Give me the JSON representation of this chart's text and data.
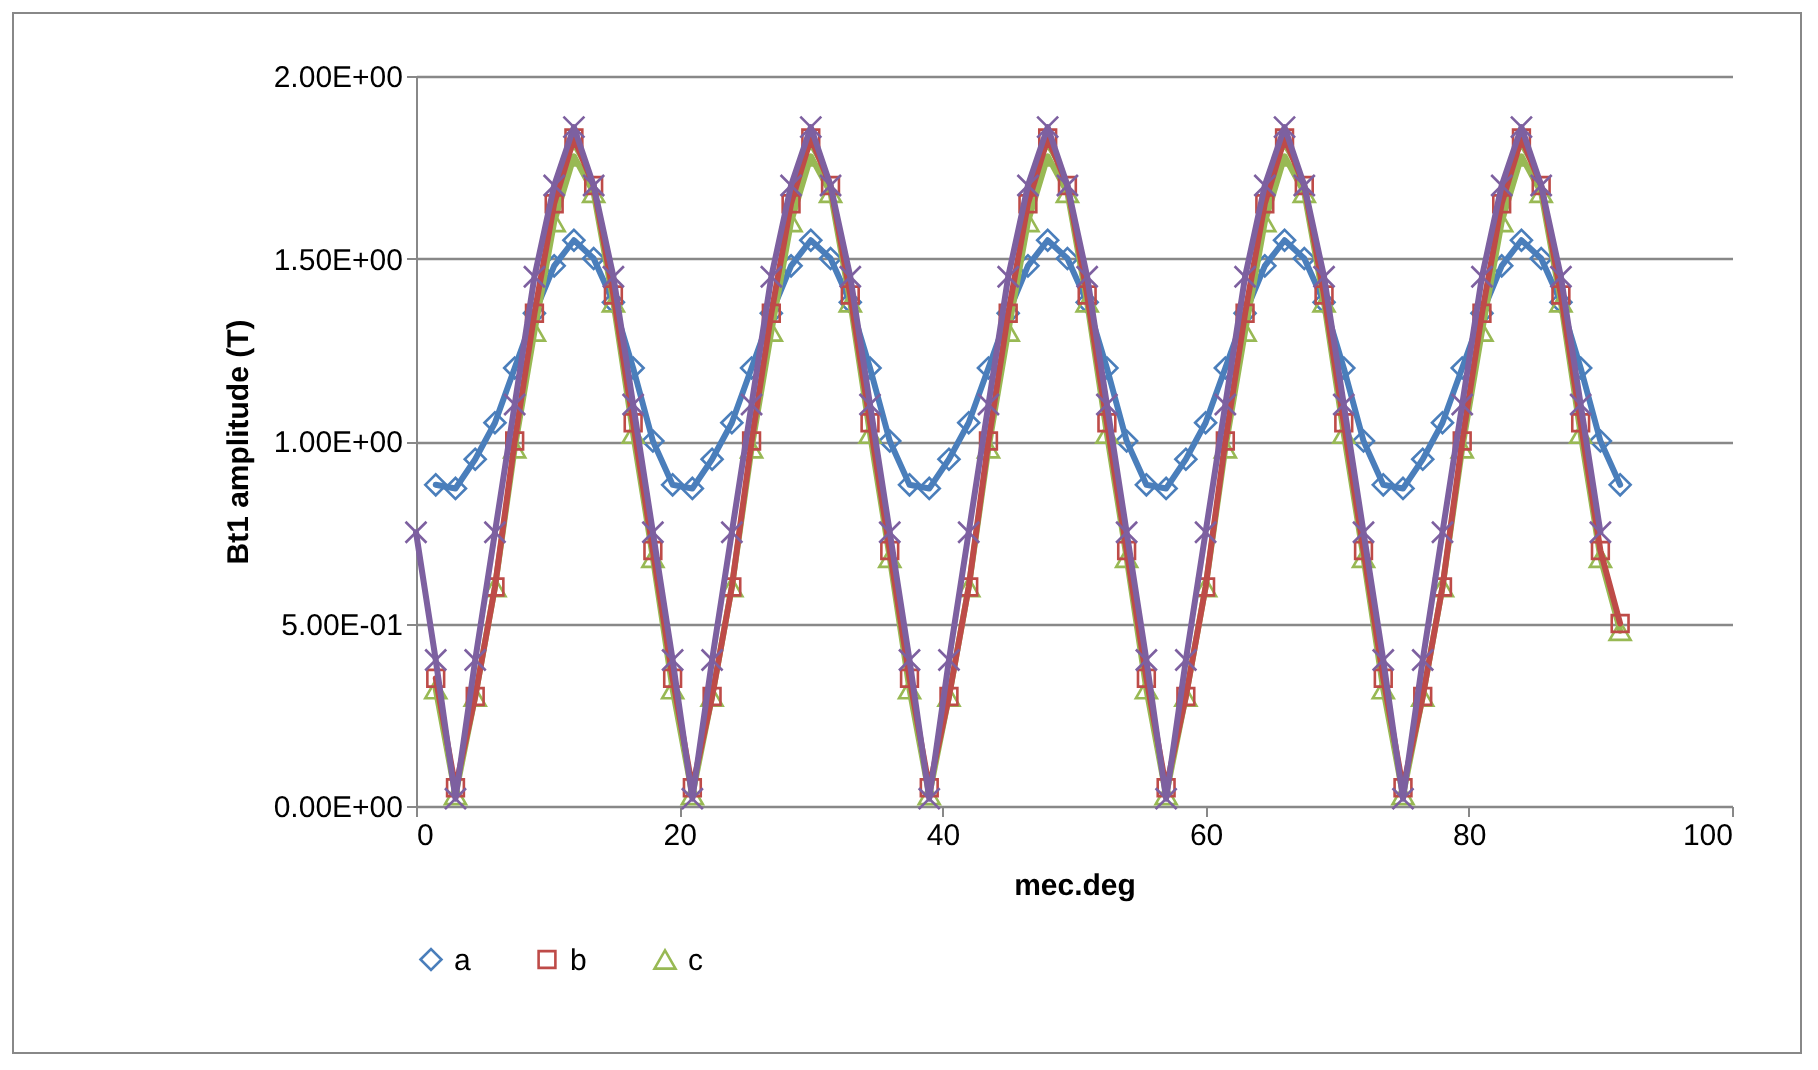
{
  "chart_data": {
    "type": "line",
    "xlabel": "mec.deg",
    "ylabel": "Bt1 amplitude (T)",
    "x": [
      1.5,
      3,
      4.5,
      6,
      7.5,
      9,
      10.5,
      12,
      13.5,
      15,
      16.5,
      18,
      19.5,
      21,
      22.5,
      24,
      25.5,
      27,
      28.5,
      30,
      31.5,
      33,
      34.5,
      36,
      37.5,
      39,
      40.5,
      42,
      43.5,
      45,
      46.5,
      48,
      49.5,
      51,
      52.5,
      54,
      55.5,
      57,
      58.5,
      60,
      61.5,
      63,
      64.5,
      66,
      67.5,
      69,
      70.5,
      72,
      73.5,
      75,
      76.5,
      78,
      79.5,
      81,
      82.5,
      84,
      85.5,
      87,
      88.5,
      90,
      91.5
    ],
    "series": [
      {
        "name": "a",
        "color": "#4a7ebb",
        "marker": "diamond",
        "values": [
          0.88,
          0.87,
          0.95,
          1.05,
          1.2,
          1.35,
          1.48,
          1.55,
          1.5,
          1.38,
          1.2,
          1.0,
          0.88,
          0.87,
          0.95,
          1.05,
          1.2,
          1.35,
          1.48,
          1.55,
          1.5,
          1.38,
          1.2,
          1.0,
          0.88,
          0.87,
          0.95,
          1.05,
          1.2,
          1.35,
          1.48,
          1.55,
          1.5,
          1.38,
          1.2,
          1.0,
          0.88,
          0.87,
          0.95,
          1.05,
          1.2,
          1.35,
          1.48,
          1.55,
          1.5,
          1.38,
          1.2,
          1.0,
          0.88,
          0.87,
          0.95,
          1.05,
          1.2,
          1.35,
          1.48,
          1.55,
          1.5,
          1.38,
          1.2,
          1.0,
          0.88
        ]
      },
      {
        "name": "b",
        "color": "#be4b48",
        "marker": "square",
        "values": [
          0.35,
          0.05,
          0.3,
          0.6,
          1.0,
          1.35,
          1.65,
          1.83,
          1.7,
          1.4,
          1.05,
          0.7,
          0.35,
          0.05,
          0.3,
          0.6,
          1.0,
          1.35,
          1.65,
          1.83,
          1.7,
          1.4,
          1.05,
          0.7,
          0.35,
          0.05,
          0.3,
          0.6,
          1.0,
          1.35,
          1.65,
          1.83,
          1.7,
          1.4,
          1.05,
          0.7,
          0.35,
          0.05,
          0.3,
          0.6,
          1.0,
          1.35,
          1.65,
          1.83,
          1.7,
          1.4,
          1.05,
          0.7,
          0.35,
          0.05,
          0.3,
          0.6,
          1.0,
          1.35,
          1.65,
          1.83,
          1.7,
          1.4,
          1.05,
          0.7,
          0.5
        ]
      },
      {
        "name": "c",
        "color": "#98b954",
        "marker": "triangle",
        "values": [
          0.32,
          0.03,
          0.3,
          0.6,
          0.98,
          1.3,
          1.6,
          1.78,
          1.68,
          1.38,
          1.02,
          0.68,
          0.32,
          0.03,
          0.3,
          0.6,
          0.98,
          1.3,
          1.6,
          1.78,
          1.68,
          1.38,
          1.02,
          0.68,
          0.32,
          0.03,
          0.3,
          0.6,
          0.98,
          1.3,
          1.6,
          1.78,
          1.68,
          1.38,
          1.02,
          0.68,
          0.32,
          0.03,
          0.3,
          0.6,
          0.98,
          1.3,
          1.6,
          1.78,
          1.68,
          1.38,
          1.02,
          0.68,
          0.32,
          0.03,
          0.3,
          0.6,
          0.98,
          1.3,
          1.6,
          1.78,
          1.68,
          1.38,
          1.02,
          0.68,
          0.48
        ]
      },
      {
        "color": "#7d60a0",
        "marker": "cross",
        "x": [
          0,
          1.5,
          3,
          4.5,
          6,
          7.5,
          9,
          10.5,
          12,
          13.5,
          15,
          16.5,
          18,
          19.5,
          21,
          22.5,
          24,
          25.5,
          27,
          28.5,
          30,
          31.5,
          33,
          34.5,
          36,
          37.5,
          39,
          40.5,
          42,
          43.5,
          45,
          46.5,
          48,
          49.5,
          51,
          52.5,
          54,
          55.5,
          57,
          58.5,
          60,
          61.5,
          63,
          64.5,
          66,
          67.5,
          69,
          70.5,
          72,
          73.5,
          75,
          76.5,
          78,
          79.5,
          81,
          82.5,
          84,
          85.5,
          87,
          88.5,
          90
        ],
        "values": [
          0.75,
          0.4,
          0.02,
          0.4,
          0.75,
          1.1,
          1.45,
          1.7,
          1.86,
          1.7,
          1.45,
          1.1,
          0.75,
          0.4,
          0.02,
          0.4,
          0.75,
          1.1,
          1.45,
          1.7,
          1.86,
          1.7,
          1.45,
          1.1,
          0.75,
          0.4,
          0.02,
          0.4,
          0.75,
          1.1,
          1.45,
          1.7,
          1.86,
          1.7,
          1.45,
          1.1,
          0.75,
          0.4,
          0.02,
          0.4,
          0.75,
          1.1,
          1.45,
          1.7,
          1.86,
          1.7,
          1.45,
          1.1,
          0.75,
          0.4,
          0.02,
          0.4,
          0.75,
          1.1,
          1.45,
          1.7,
          1.86,
          1.7,
          1.45,
          1.1,
          0.75
        ]
      }
    ],
    "xlim": [
      0,
      100
    ],
    "xticks": [
      0,
      20,
      40,
      60,
      80,
      100
    ],
    "ylim": [
      0,
      2
    ],
    "yticks": [
      {
        "value": 0,
        "label": "0.00E+00"
      },
      {
        "value": 0.5,
        "label": "5.00E-01"
      },
      {
        "value": 1,
        "label": "1.00E+00"
      },
      {
        "value": 1.5,
        "label": "1.50E+00"
      },
      {
        "value": 2,
        "label": "2.00E+00"
      }
    ],
    "grid": "y",
    "legend": "bottom",
    "line_style": "solid"
  }
}
